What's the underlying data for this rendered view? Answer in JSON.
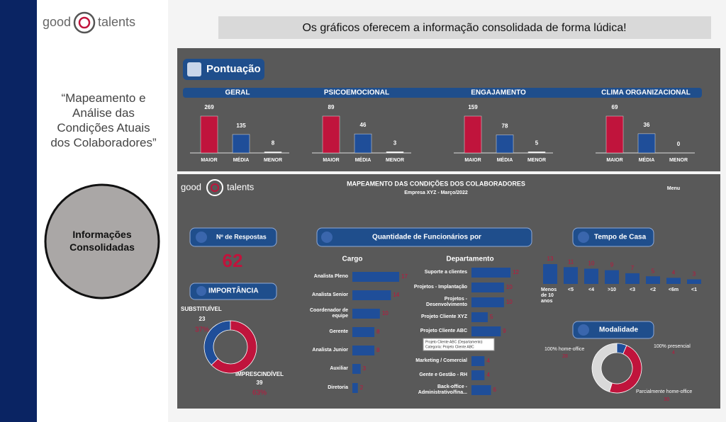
{
  "header": {
    "logo": [
      "good",
      "talents"
    ],
    "banner": "Os gráficos oferecem a informação consolidada de forma lúdica!"
  },
  "sidebar": {
    "quote": "“Mapeamento e Análise das Condições Atuais dos Colaboradores”",
    "circle_text": "Informações Consolidadas"
  },
  "pontuacao": {
    "title": "Pontuação",
    "colors": [
      "#c0143c",
      "#1f4e99",
      "#ffffff"
    ],
    "groups": [
      {
        "title": "GERAL",
        "categories": [
          "MAIOR",
          "MÉDIA",
          "MENOR"
        ],
        "values": [
          269,
          135,
          8
        ]
      },
      {
        "title": "PSICOEMOCIONAL",
        "categories": [
          "MAIOR",
          "MÉDIA",
          "MENOR"
        ],
        "values": [
          89,
          46,
          3
        ]
      },
      {
        "title": "ENGAJAMENTO",
        "categories": [
          "MAIOR",
          "MÉDIA",
          "MENOR"
        ],
        "values": [
          159,
          78,
          5
        ]
      },
      {
        "title": "CLIMA ORGANIZACIONAL",
        "categories": [
          "MAIOR",
          "MÉDIA",
          "MENOR"
        ],
        "values": [
          69,
          36,
          0
        ]
      }
    ]
  },
  "dashboard": {
    "logo": [
      "good",
      "talents"
    ],
    "title": "MAPEAMENTO DAS CONDIÇÕES DOS COLABORADORES",
    "subtitle": "Empresa XYZ - Março/2022",
    "menu": "Menu"
  },
  "respostas": {
    "label": "Nº de Respostas",
    "value": 62
  },
  "importancia": {
    "title": "IMPORTÂNCIA",
    "slices": [
      {
        "name": "SUBSTITUÍVEL",
        "value": 23,
        "percent": "37%",
        "color": "#1f4e99"
      },
      {
        "name": "IMPRESCINDÍVEL",
        "value": 39,
        "percent": "63%",
        "color": "#c0143c"
      }
    ]
  },
  "funcionarios": {
    "title": "Quantidade de Funcionários por",
    "color": "#1f4e99",
    "cargo": {
      "title": "Cargo",
      "categories": [
        "Analista Pleno",
        "Analista Senior",
        "Coordenador de equipe",
        "Gerente",
        "Analista Junior",
        "Auxiliar",
        "Diretoria"
      ],
      "values": [
        17,
        14,
        10,
        8,
        8,
        3,
        2
      ]
    },
    "departamento": {
      "title": "Departamento",
      "categories": [
        "Suporte a clientes",
        "Projetos - Implantação",
        "Projetos - Desenvolvimento",
        "Projeto Cliente XYZ",
        "Projeto Cliente ABC",
        "Marketing / Comercial",
        "Gente e Gestão - RH",
        "Back-office - Administrativo/fina..."
      ],
      "values": [
        12,
        10,
        10,
        5,
        9,
        4,
        4,
        6
      ]
    },
    "tooltip": [
      "Projeto Cliente ABC (Departamento)",
      "Categoria: Projeto Cliente ABC"
    ]
  },
  "tempo": {
    "title": "Tempo de Casa",
    "color": "#1f4e99",
    "categories": [
      "Menos de 10 anos",
      "<5",
      "<4",
      ">10",
      "<3",
      "<2",
      "<6m",
      "<1"
    ],
    "values": [
      13,
      11,
      10,
      9,
      7,
      5,
      4,
      3
    ]
  },
  "modalidade": {
    "title": "Modalidade",
    "slices": [
      {
        "name": "100% home-office",
        "value": 28,
        "color": "#d9d9d9"
      },
      {
        "name": "Parcialmente home-office",
        "value": 30,
        "color": "#c0143c"
      },
      {
        "name": "100% presencial",
        "value": 4,
        "color": "#1f4e99"
      }
    ]
  }
}
